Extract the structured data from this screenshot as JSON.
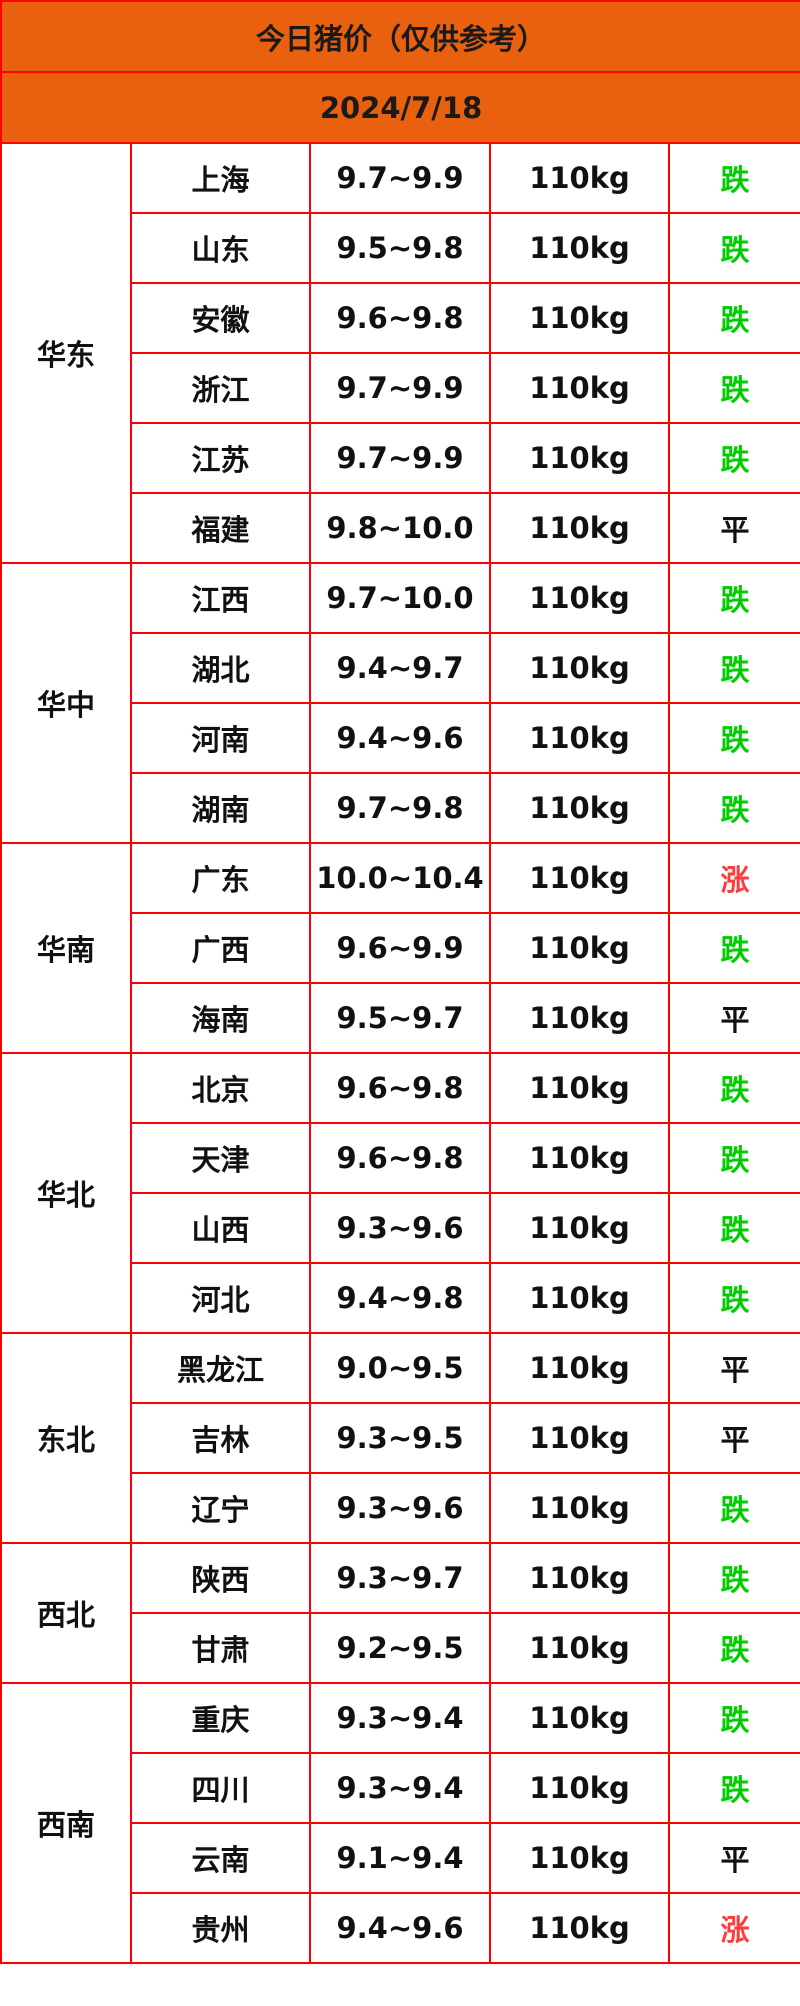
{
  "title": "今日猪价（仅供参考）",
  "date": "2024/7/18",
  "colors": {
    "header_bg": "#e9610f",
    "border": "#ff0000",
    "fall": "#00cc00",
    "rise": "#ff3b3b",
    "flat": "#111111"
  },
  "regions": [
    {
      "name": "华东",
      "rows": [
        {
          "province": "上海",
          "price": "9.7~9.9",
          "weight": "110kg",
          "trend": "跌"
        },
        {
          "province": "山东",
          "price": "9.5~9.8",
          "weight": "110kg",
          "trend": "跌"
        },
        {
          "province": "安徽",
          "price": "9.6~9.8",
          "weight": "110kg",
          "trend": "跌"
        },
        {
          "province": "浙江",
          "price": "9.7~9.9",
          "weight": "110kg",
          "trend": "跌"
        },
        {
          "province": "江苏",
          "price": "9.7~9.9",
          "weight": "110kg",
          "trend": "跌"
        },
        {
          "province": "福建",
          "price": "9.8~10.0",
          "weight": "110kg",
          "trend": "平"
        }
      ]
    },
    {
      "name": "华中",
      "rows": [
        {
          "province": "江西",
          "price": "9.7~10.0",
          "weight": "110kg",
          "trend": "跌"
        },
        {
          "province": "湖北",
          "price": "9.4~9.7",
          "weight": "110kg",
          "trend": "跌"
        },
        {
          "province": "河南",
          "price": "9.4~9.6",
          "weight": "110kg",
          "trend": "跌"
        },
        {
          "province": "湖南",
          "price": "9.7~9.8",
          "weight": "110kg",
          "trend": "跌"
        }
      ]
    },
    {
      "name": "华南",
      "rows": [
        {
          "province": "广东",
          "price": "10.0~10.4",
          "weight": "110kg",
          "trend": "涨"
        },
        {
          "province": "广西",
          "price": "9.6~9.9",
          "weight": "110kg",
          "trend": "跌"
        },
        {
          "province": "海南",
          "price": "9.5~9.7",
          "weight": "110kg",
          "trend": "平"
        }
      ]
    },
    {
      "name": "华北",
      "rows": [
        {
          "province": "北京",
          "price": "9.6~9.8",
          "weight": "110kg",
          "trend": "跌"
        },
        {
          "province": "天津",
          "price": "9.6~9.8",
          "weight": "110kg",
          "trend": "跌"
        },
        {
          "province": "山西",
          "price": "9.3~9.6",
          "weight": "110kg",
          "trend": "跌"
        },
        {
          "province": "河北",
          "price": "9.4~9.8",
          "weight": "110kg",
          "trend": "跌"
        }
      ]
    },
    {
      "name": "东北",
      "rows": [
        {
          "province": "黑龙江",
          "price": "9.0~9.5",
          "weight": "110kg",
          "trend": "平"
        },
        {
          "province": "吉林",
          "price": "9.3~9.5",
          "weight": "110kg",
          "trend": "平"
        },
        {
          "province": "辽宁",
          "price": "9.3~9.6",
          "weight": "110kg",
          "trend": "跌"
        }
      ]
    },
    {
      "name": "西北",
      "rows": [
        {
          "province": "陕西",
          "price": "9.3~9.7",
          "weight": "110kg",
          "trend": "跌"
        },
        {
          "province": "甘肃",
          "price": "9.2~9.5",
          "weight": "110kg",
          "trend": "跌"
        }
      ]
    },
    {
      "name": "西南",
      "rows": [
        {
          "province": "重庆",
          "price": "9.3~9.4",
          "weight": "110kg",
          "trend": "跌"
        },
        {
          "province": "四川",
          "price": "9.3~9.4",
          "weight": "110kg",
          "trend": "跌"
        },
        {
          "province": "云南",
          "price": "9.1~9.4",
          "weight": "110kg",
          "trend": "平"
        },
        {
          "province": "贵州",
          "price": "9.4~9.6",
          "weight": "110kg",
          "trend": "涨"
        }
      ]
    }
  ]
}
